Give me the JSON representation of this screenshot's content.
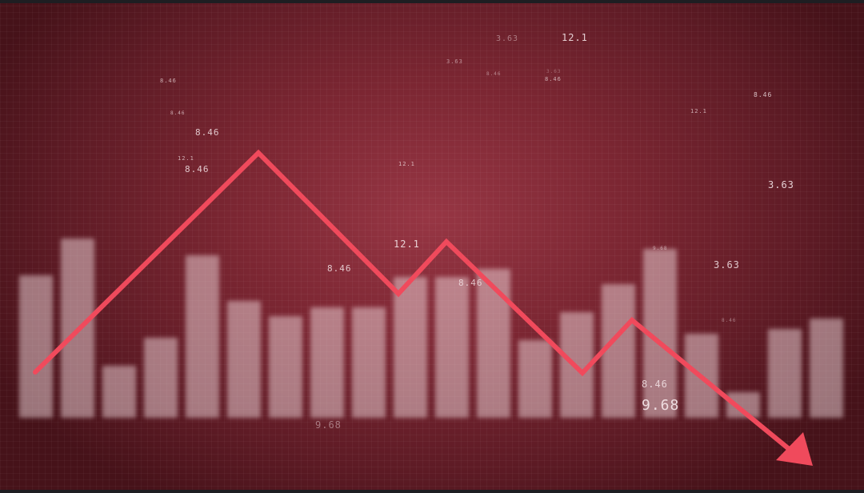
{
  "colors": {
    "background": "#7b2632",
    "trend_line": "#f04a5c",
    "bars": "#f0d7dc",
    "numbers": "#f3e3e6"
  },
  "trend_arrow": {
    "direction": "down",
    "icon": "down-trend-arrow-icon"
  },
  "bar_levels": [
    0.66,
    0.83,
    0.24,
    0.37,
    0.75,
    0.54,
    0.47,
    0.51,
    0.51,
    0.65,
    0.65,
    0.69,
    0.36,
    0.49,
    0.62,
    0.78,
    0.39,
    0.12,
    0.41,
    0.46
  ],
  "floating_numbers": [
    {
      "text": "12.1"
    },
    {
      "text": "3.63"
    },
    {
      "text": "8.46"
    },
    {
      "text": "3.63"
    },
    {
      "text": "8.46"
    },
    {
      "text": "8.46"
    },
    {
      "text": "8.46"
    },
    {
      "text": "12.1"
    },
    {
      "text": "3.63"
    },
    {
      "text": "8.46"
    },
    {
      "text": "12.1"
    },
    {
      "text": "8.46"
    },
    {
      "text": "12.1"
    },
    {
      "text": "3.63"
    },
    {
      "text": "8.46"
    },
    {
      "text": "12.1"
    },
    {
      "text": "8.46"
    },
    {
      "text": "8.46"
    },
    {
      "text": "9.68"
    },
    {
      "text": "3.63"
    },
    {
      "text": "8.46"
    },
    {
      "text": "8.46"
    },
    {
      "text": "9.68"
    },
    {
      "text": "9.68"
    }
  ]
}
